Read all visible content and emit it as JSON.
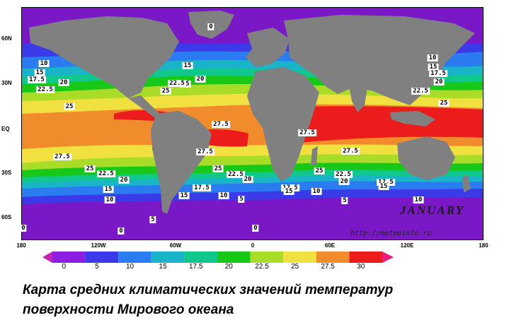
{
  "map": {
    "month": "JANUARY",
    "source": "http://meteoinfo.ru",
    "lat_labels": [
      "60N",
      "30N",
      "EQ",
      "30S",
      "60S"
    ],
    "lon_labels": [
      "180",
      "120W",
      "60W",
      "0",
      "60E",
      "120E",
      "180"
    ],
    "isotherm_labels": [
      "0",
      "15",
      "20",
      "10",
      "15",
      "17.5",
      "20",
      "22.5",
      "25",
      "25",
      "22.5",
      "25",
      "27.5",
      "27.5",
      "27.5",
      "27.5",
      "25",
      "22.5",
      "20",
      "15",
      "10",
      "25",
      "22.5",
      "20",
      "17.5",
      "15",
      "10",
      "5",
      "17.5",
      "15",
      "10",
      "25",
      "22.5",
      "20",
      "17.5",
      "15",
      "10",
      "5",
      "5",
      "0",
      "0",
      "0",
      "10",
      "15",
      "17.5",
      "20",
      "22.5",
      "25",
      "27.5"
    ]
  },
  "colorbar": {
    "labels": [
      "0",
      "5",
      "10",
      "15",
      "17.5",
      "20",
      "22.5",
      "25",
      "27.5",
      "30"
    ],
    "colors": [
      "#8c1ee0",
      "#3a3ae8",
      "#2a7cf0",
      "#19b4c8",
      "#10c88c",
      "#18c818",
      "#a8dc28",
      "#f0e040",
      "#f08c2c",
      "#ec1c1c"
    ]
  },
  "caption": {
    "line1": "Карта средних климатических значений  температур",
    "line2": "поверхности Мирового океана"
  }
}
